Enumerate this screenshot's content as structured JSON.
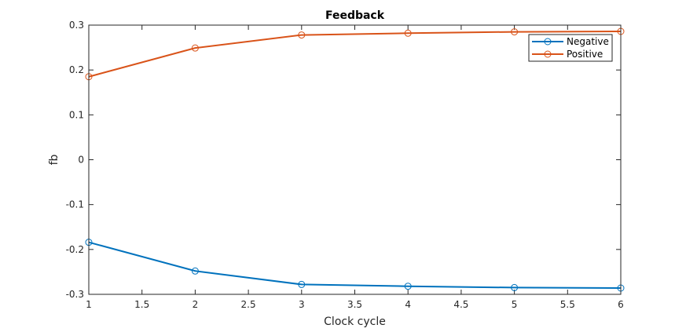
{
  "chart_data": {
    "type": "line",
    "title": "Feedback",
    "xlabel": "Clock cycle",
    "ylabel": "fb",
    "xlim": [
      1,
      6
    ],
    "ylim": [
      -0.3,
      0.3
    ],
    "xticks": [
      1,
      1.5,
      2,
      2.5,
      3,
      3.5,
      4,
      4.5,
      5,
      5.5,
      6
    ],
    "xtick_labels": [
      "1",
      "1.5",
      "2",
      "2.5",
      "3",
      "3.5",
      "4",
      "4.5",
      "5",
      "5.5",
      "6"
    ],
    "yticks": [
      -0.3,
      -0.2,
      -0.1,
      0,
      0.1,
      0.2,
      0.3
    ],
    "ytick_labels": [
      "-0.3",
      "-0.2",
      "-0.1",
      "0",
      "0.1",
      "0.2",
      "0.3"
    ],
    "x": [
      1,
      2,
      3,
      4,
      5,
      6
    ],
    "series": [
      {
        "name": "Negative",
        "color": "#0072BD",
        "values": [
          -0.184,
          -0.248,
          -0.278,
          -0.282,
          -0.285,
          -0.286
        ]
      },
      {
        "name": "Positive",
        "color": "#D95319",
        "values": [
          0.185,
          0.249,
          0.278,
          0.282,
          0.285,
          0.286
        ]
      }
    ],
    "legend_position": "top-right",
    "grid": false
  }
}
